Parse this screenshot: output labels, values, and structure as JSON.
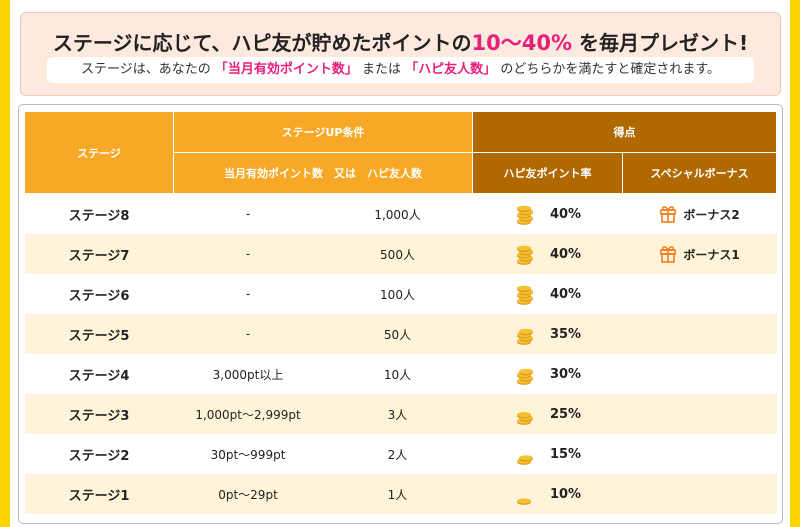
{
  "banner": {
    "title_prefix": "ステージに応じて、ハピ友が貯めたポイントの",
    "title_pct": "10〜40%",
    "title_suffix": "を毎月プレゼント!",
    "sub_1": "ステージは、あなたの",
    "sub_hl1": "「当月有効ポイント数」",
    "sub_2": "または",
    "sub_hl2": "「ハピ友人数」",
    "sub_3": "のどちらかを満たすと確定されます。"
  },
  "table": {
    "head_stage": "ステージ",
    "head_condition": "ステージUP条件",
    "head_score": "得点",
    "head_condition_sub": "当月有効ポイント数　又は　ハピ友人数",
    "head_rate": "ハピ友ポイント率",
    "head_bonus": "スペシャルボーナス",
    "rows": [
      {
        "stage": "ステージ8",
        "points": "-",
        "friends": "1,000人",
        "rate": "40%",
        "bonus": "ボーナス2"
      },
      {
        "stage": "ステージ7",
        "points": "-",
        "friends": "500人",
        "rate": "40%",
        "bonus": "ボーナス1"
      },
      {
        "stage": "ステージ6",
        "points": "-",
        "friends": "100人",
        "rate": "40%",
        "bonus": ""
      },
      {
        "stage": "ステージ5",
        "points": "-",
        "friends": "50人",
        "rate": "35%",
        "bonus": ""
      },
      {
        "stage": "ステージ4",
        "points": "3,000pt以上",
        "friends": "10人",
        "rate": "30%",
        "bonus": ""
      },
      {
        "stage": "ステージ3",
        "points": "1,000pt〜2,999pt",
        "friends": "3人",
        "rate": "25%",
        "bonus": ""
      },
      {
        "stage": "ステージ2",
        "points": "30pt〜999pt",
        "friends": "2人",
        "rate": "15%",
        "bonus": ""
      },
      {
        "stage": "ステージ1",
        "points": "0pt〜29pt",
        "friends": "1人",
        "rate": "10%",
        "bonus": ""
      }
    ]
  },
  "colors": {
    "accent_pink": "#e8207a",
    "header_orange": "#f7a826",
    "header_brown": "#b06800",
    "row_alt": "#fff4da",
    "border_yellow": "#ffd400"
  },
  "icons": {
    "coin": "coin-stack-icon",
    "gift": "gift-icon"
  }
}
